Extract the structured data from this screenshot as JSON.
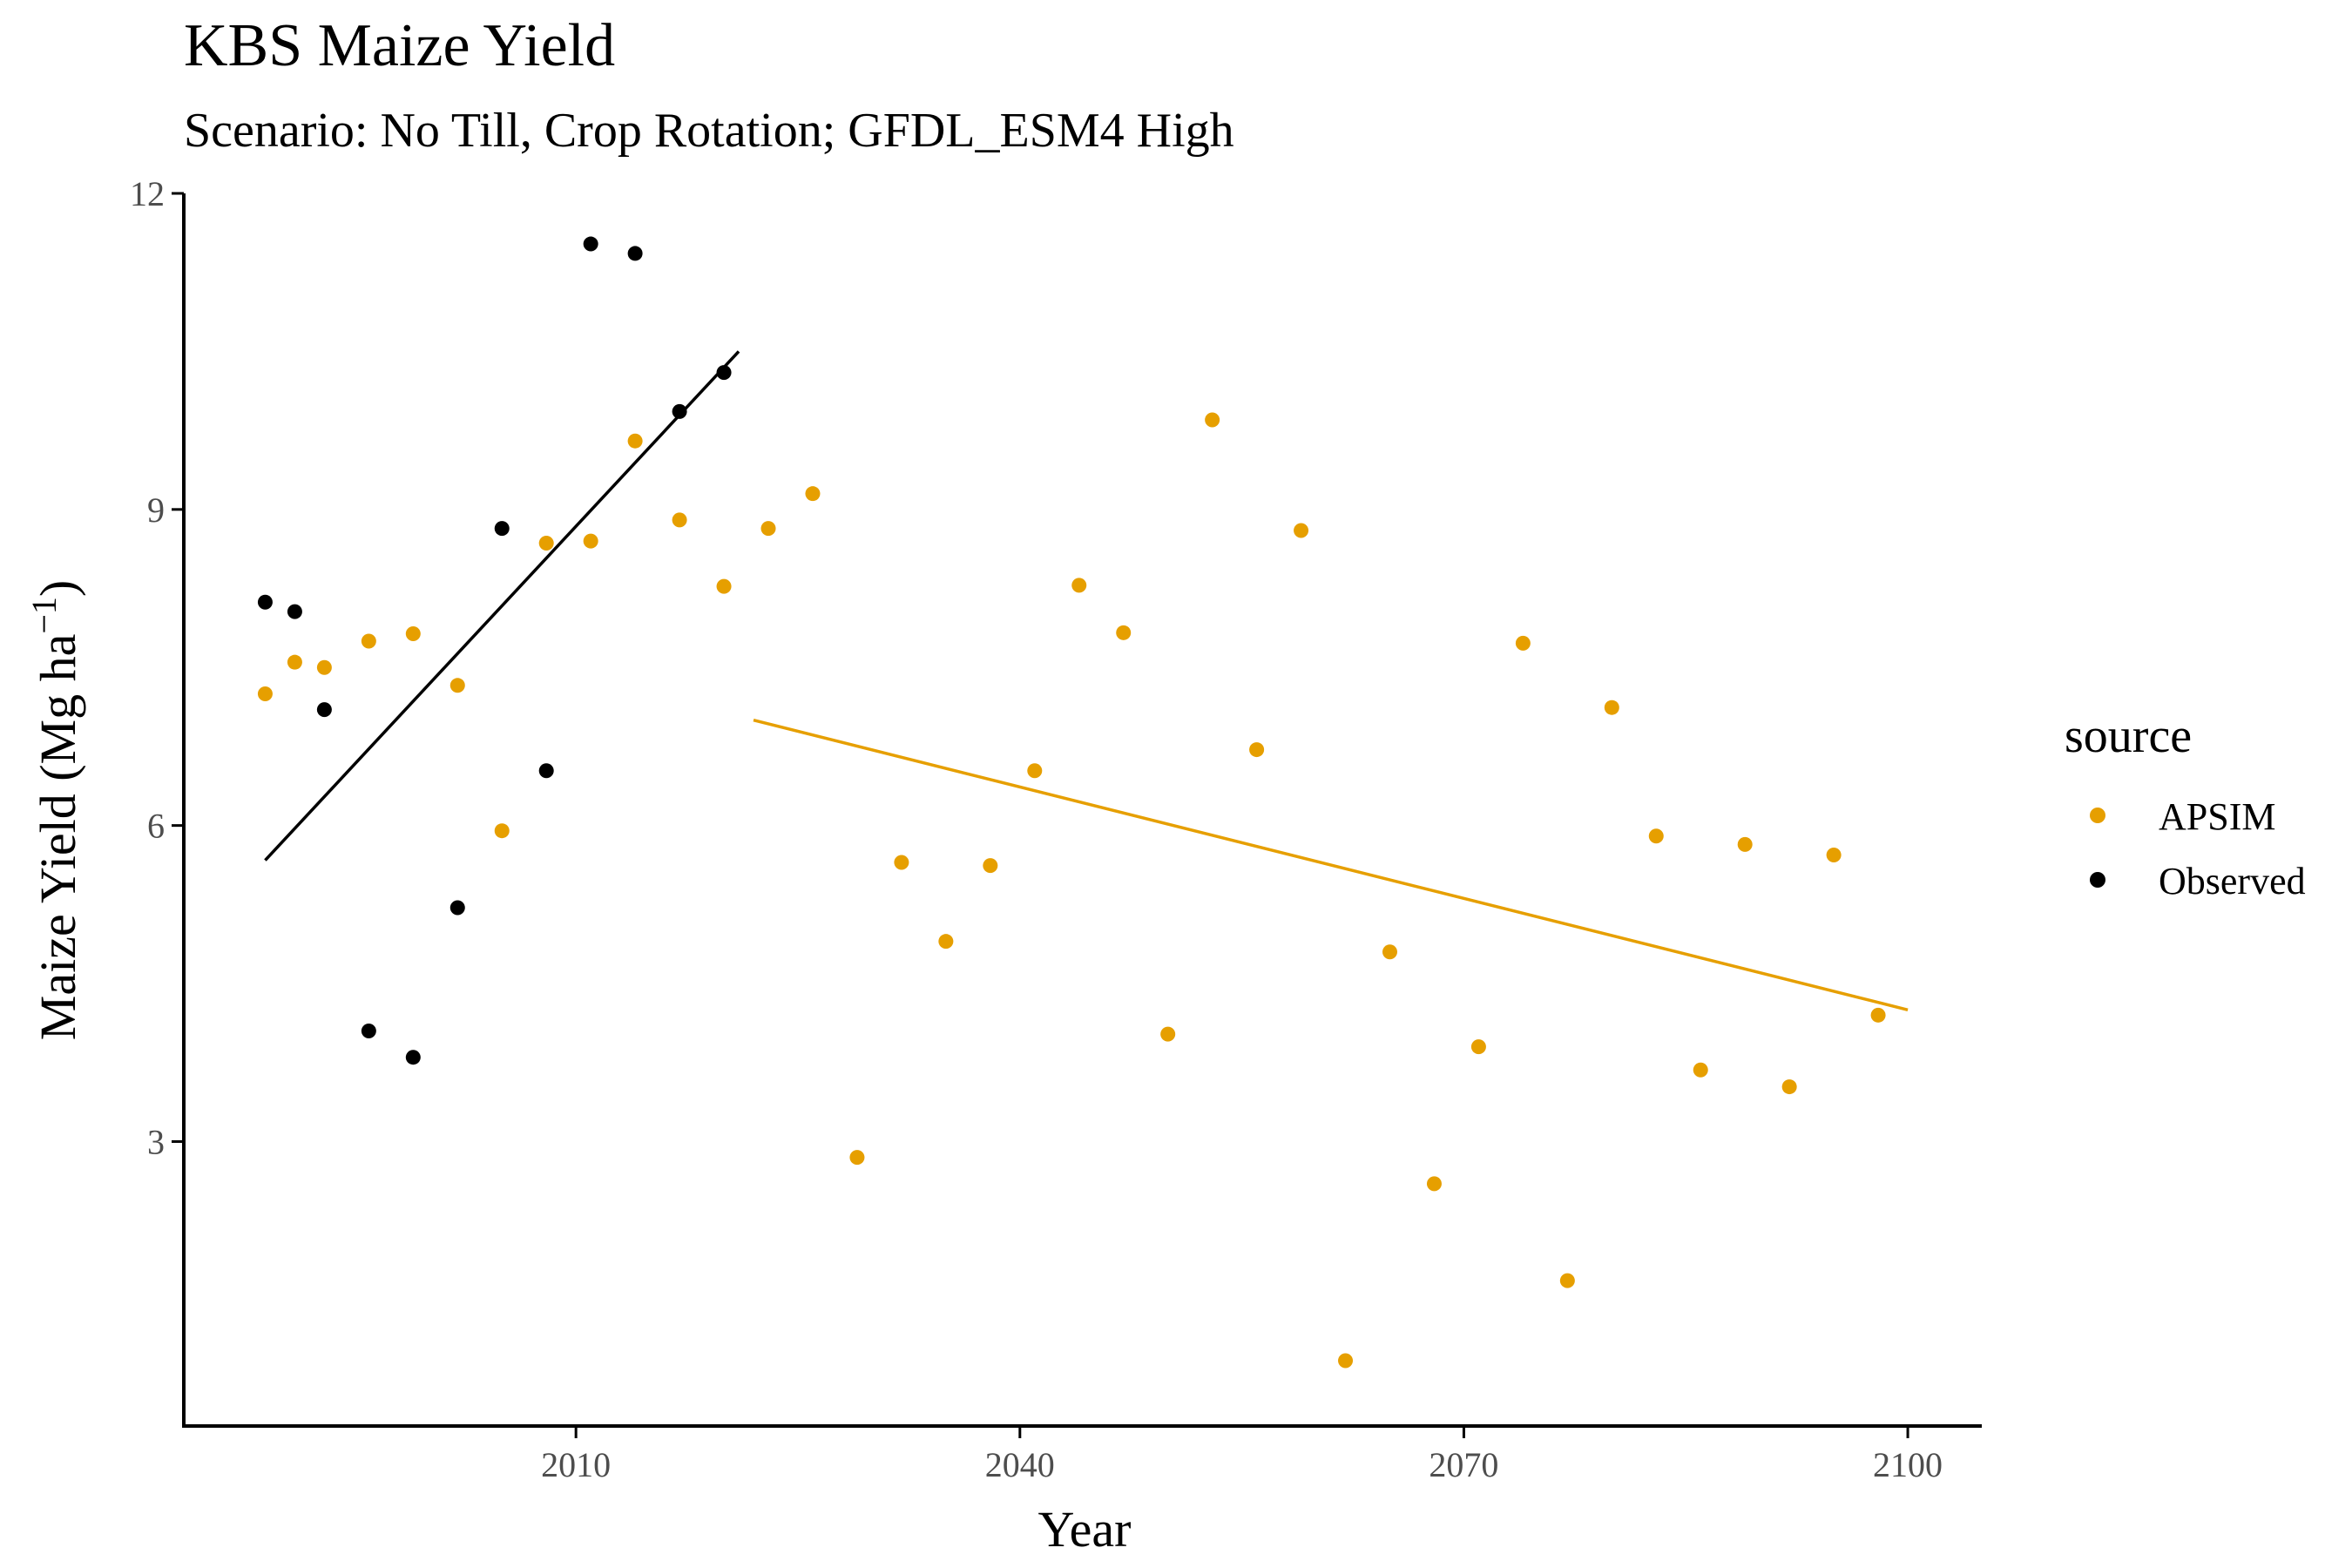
{
  "colors": {
    "apsim": "#E69F00",
    "observed": "#000000",
    "axis": "#000000",
    "tick_text": "#4d4d4d"
  },
  "chart_data": {
    "type": "scatter",
    "title": "KBS Maize Yield",
    "subtitle": "Scenario: No Till, Crop Rotation; GFDL_ESM4 High",
    "xlabel": "Year",
    "ylabel_main": "Maize Yield (Mg ha",
    "ylabel_sup": "−1",
    "ylabel_close": ")",
    "xlim": [
      1983.5,
      2105
    ],
    "ylim": [
      0.3,
      12
    ],
    "x_ticks": [
      2010,
      2040,
      2070,
      2100
    ],
    "y_ticks": [
      3,
      6,
      9,
      12
    ],
    "grid": false,
    "legend": {
      "title": "source",
      "position": "right",
      "items": [
        "APSIM",
        "Observed"
      ]
    },
    "series": [
      {
        "name": "APSIM",
        "color": "#E69F00",
        "points": [
          [
            1989,
            7.25
          ],
          [
            1991,
            7.55
          ],
          [
            1993,
            7.5
          ],
          [
            1996,
            7.75
          ],
          [
            1999,
            7.82
          ],
          [
            2002,
            7.33
          ],
          [
            2005,
            5.95
          ],
          [
            2008,
            8.68
          ],
          [
            2011,
            8.7
          ],
          [
            2014,
            9.65
          ],
          [
            2017,
            8.9
          ],
          [
            2020,
            8.27
          ],
          [
            2023,
            8.82
          ],
          [
            2026,
            9.15
          ],
          [
            2029,
            2.85
          ],
          [
            2032,
            5.65
          ],
          [
            2035,
            4.9
          ],
          [
            2038,
            5.62
          ],
          [
            2041,
            6.52
          ],
          [
            2044,
            8.28
          ],
          [
            2047,
            7.83
          ],
          [
            2050,
            4.02
          ],
          [
            2053,
            9.85
          ],
          [
            2056,
            6.72
          ],
          [
            2059,
            8.8
          ],
          [
            2062,
            0.92
          ],
          [
            2065,
            4.8
          ],
          [
            2068,
            2.6
          ],
          [
            2071,
            3.9
          ],
          [
            2074,
            7.73
          ],
          [
            2077,
            1.68
          ],
          [
            2080,
            7.12
          ],
          [
            2083,
            5.9
          ],
          [
            2086,
            3.68
          ],
          [
            2089,
            5.82
          ],
          [
            2092,
            3.52
          ],
          [
            2095,
            5.72
          ],
          [
            2098,
            4.2
          ]
        ],
        "trend": {
          "x": [
            2022,
            2100
          ],
          "y": [
            7.0,
            4.25
          ]
        }
      },
      {
        "name": "Observed",
        "color": "#000000",
        "points": [
          [
            1989,
            8.12
          ],
          [
            1991,
            8.03
          ],
          [
            1993,
            7.1
          ],
          [
            1996,
            4.05
          ],
          [
            1999,
            3.8
          ],
          [
            2002,
            5.22
          ],
          [
            2005,
            8.82
          ],
          [
            2008,
            6.52
          ],
          [
            2011,
            11.52
          ],
          [
            2014,
            11.43
          ],
          [
            2017,
            9.93
          ],
          [
            2020,
            10.3
          ]
        ],
        "trend": {
          "x": [
            1989,
            2021
          ],
          "y": [
            5.67,
            10.5
          ]
        }
      }
    ]
  }
}
